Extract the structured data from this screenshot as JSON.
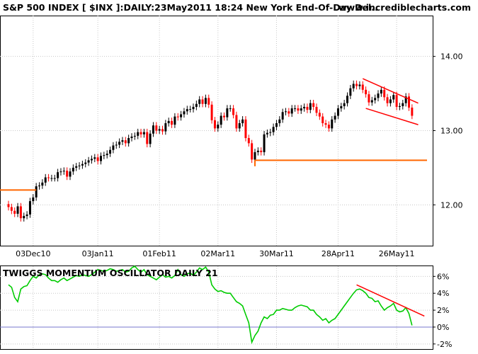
{
  "header": {
    "title": "S&P 500 INDEX [ $INX ]:DAILY:23May2011 18:24 New York End-Of-Day Del..",
    "site": "www.incrediblecharts.com"
  },
  "chart_data": [
    {
      "type": "candlestick",
      "title": "S&P 500 INDEX [ $INX ]:DAILY:23May2011 18:24 New York End-Of-Day Del..",
      "y_ticks": [
        "14.00",
        "13.00",
        "12.00"
      ],
      "x_ticks": [
        "03Dec10",
        "03Jan11",
        "01Feb11",
        "02Mar11",
        "30Mar11",
        "28Apr11",
        "26May11"
      ],
      "ylim": [
        11.45,
        14.55
      ],
      "grid": true,
      "closes": [
        11.97,
        11.92,
        11.88,
        11.98,
        11.82,
        11.85,
        11.87,
        12.05,
        12.1,
        12.25,
        12.26,
        12.3,
        12.37,
        12.36,
        12.36,
        12.36,
        12.44,
        12.45,
        12.46,
        12.38,
        12.45,
        12.5,
        12.52,
        12.53,
        12.55,
        12.57,
        12.6,
        12.62,
        12.64,
        12.59,
        12.66,
        12.67,
        12.69,
        12.74,
        12.8,
        12.81,
        12.85,
        12.87,
        12.83,
        12.9,
        12.92,
        12.93,
        12.98,
        12.95,
        12.98,
        12.82,
        12.96,
        13.07,
        13.0,
        13.02,
        12.99,
        13.1,
        13.13,
        13.08,
        13.19,
        13.18,
        13.22,
        13.26,
        13.29,
        13.29,
        13.32,
        13.36,
        13.42,
        13.36,
        13.44,
        13.35,
        13.14,
        13.03,
        13.08,
        13.2,
        13.18,
        13.3,
        13.3,
        13.21,
        13.03,
        13.1,
        13.15,
        12.9,
        12.83,
        12.61,
        12.71,
        12.73,
        12.71,
        12.95,
        12.97,
        12.98,
        13.05,
        13.1,
        13.15,
        13.25,
        13.26,
        13.23,
        13.3,
        13.3,
        13.27,
        13.3,
        13.32,
        13.28,
        13.37,
        13.32,
        13.24,
        13.19,
        13.1,
        13.08,
        13.03,
        13.15,
        13.2,
        13.3,
        13.33,
        13.37,
        13.47,
        13.57,
        13.63,
        13.6,
        13.62,
        13.55,
        13.49,
        13.38,
        13.41,
        13.44,
        13.5,
        13.55,
        13.45,
        13.37,
        13.42,
        13.48,
        13.32,
        13.33,
        13.37,
        13.46,
        13.31,
        13.2
      ],
      "trendlines": [
        {
          "color": "#ff0000",
          "label": "upper channel line"
        },
        {
          "color": "#ff0000",
          "label": "lower channel line"
        },
        {
          "color": "#ff6600",
          "label": "support 12.60"
        },
        {
          "color": "#ff6600",
          "label": "support 12.20"
        }
      ]
    },
    {
      "type": "line",
      "title": "TWIGGS MOMENTUM OSCILLATOR DAILY 21",
      "y_ticks": [
        "6%",
        "4%",
        "2%",
        "0%",
        "-2%"
      ],
      "ylim": [
        -2.6,
        7.2
      ],
      "series": [
        {
          "color": "#00cc00",
          "values": [
            5.0,
            4.7,
            3.5,
            3.0,
            4.5,
            4.8,
            4.9,
            5.5,
            6.0,
            5.8,
            6.2,
            6.3,
            6.2,
            5.8,
            5.5,
            5.5,
            5.3,
            5.6,
            5.8,
            5.5,
            5.7,
            5.9,
            6.1,
            6.0,
            6.2,
            6.1,
            6.0,
            6.2,
            6.5,
            6.8,
            6.7,
            6.6,
            6.7,
            6.9,
            6.8,
            6.6,
            6.7,
            6.8,
            6.5,
            6.6,
            7.0,
            7.2,
            6.8,
            6.5,
            6.8,
            6.2,
            6.0,
            5.8,
            5.6,
            5.9,
            6.2,
            5.9,
            6.0,
            5.8,
            6.1,
            6.8,
            6.2,
            6.0,
            6.3,
            6.4,
            6.1,
            6.5,
            7.0,
            6.8,
            7.1,
            6.5,
            5.0,
            4.5,
            4.2,
            4.3,
            4.1,
            4.0,
            4.0,
            3.5,
            3.0,
            2.8,
            2.5,
            1.5,
            0.5,
            -1.8,
            -1.0,
            -0.5,
            0.5,
            1.2,
            1.0,
            1.4,
            1.5,
            2.0,
            2.0,
            2.2,
            2.1,
            2.0,
            2.0,
            2.3,
            2.5,
            2.6,
            2.5,
            2.4,
            2.0,
            2.0,
            1.5,
            1.2,
            0.8,
            1.0,
            0.5,
            0.8,
            1.0,
            1.5,
            2.0,
            2.5,
            3.0,
            3.5,
            4.0,
            4.4,
            4.5,
            4.3,
            4.0,
            3.5,
            3.4,
            3.0,
            3.1,
            2.5,
            2.0,
            2.3,
            2.5,
            2.8,
            2.0,
            1.8,
            1.9,
            2.3,
            1.6,
            0.2
          ]
        }
      ],
      "trendlines": [
        {
          "color": "#ff0000",
          "label": "declining peaks"
        }
      ],
      "zero_line_color": "#7777cc"
    }
  ]
}
